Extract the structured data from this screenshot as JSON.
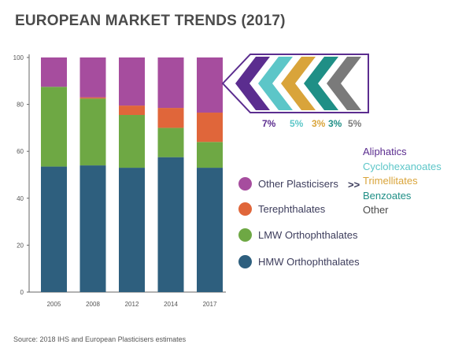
{
  "title": "EUROPEAN MARKET TRENDS (2017)",
  "source": "Source: 2018 IHS and European Plasticisers estimates",
  "colors": {
    "hmw": "#2e5f7e",
    "lmw": "#6ea844",
    "terephthalates": "#e0663a",
    "other": "#a64d9e",
    "aliphatics": "#5b2d8f",
    "cyclohexanoates": "#5cc6c8",
    "trimellitates": "#d9a43a",
    "benzoates": "#1f8f86",
    "other_breakdown": "#7a7a7a"
  },
  "legend": [
    {
      "label": "Other Plasticisers",
      "color_key": "other"
    },
    {
      "label": "Terephthalates",
      "color_key": "terephthalates"
    },
    {
      "label": "LMW Orthophthalates",
      "color_key": "lmw"
    },
    {
      "label": "HMW Orthophthalates",
      "color_key": "hmw"
    }
  ],
  "arrows_label": ">>",
  "breakdown": [
    {
      "label": "Aliphatics",
      "pct": "7%",
      "color_key": "aliphatics"
    },
    {
      "label": "Cyclohexanoates",
      "pct": "5%",
      "color_key": "cyclohexanoates"
    },
    {
      "label": "Trimellitates",
      "pct": "3%",
      "color_key": "trimellitates"
    },
    {
      "label": "Benzoates",
      "pct": "3%",
      "color_key": "benzoates"
    },
    {
      "label": "Other",
      "pct": "5%",
      "color_key": "other_breakdown"
    }
  ],
  "chart_data": {
    "type": "bar",
    "stacked": true,
    "categories": [
      "2005",
      "2008",
      "2012",
      "2014",
      "2017"
    ],
    "series": [
      {
        "name": "HMW Orthophthalates",
        "color_key": "hmw",
        "values": [
          53.5,
          54,
          53,
          57.5,
          53
        ]
      },
      {
        "name": "LMW Orthophthalates",
        "color_key": "lmw",
        "values": [
          34,
          28.5,
          22.5,
          12.5,
          11
        ]
      },
      {
        "name": "Terephthalates",
        "color_key": "terephthalates",
        "values": [
          0,
          0.5,
          4,
          8.5,
          12.5
        ]
      },
      {
        "name": "Other Plasticisers",
        "color_key": "other",
        "values": [
          12.5,
          17,
          20.5,
          21.5,
          23.5
        ]
      }
    ],
    "y_ticks": [
      "0",
      "20",
      "40",
      "60",
      "80",
      "100"
    ],
    "ylim": [
      0,
      100
    ],
    "grid": false,
    "legend_position": "right"
  }
}
